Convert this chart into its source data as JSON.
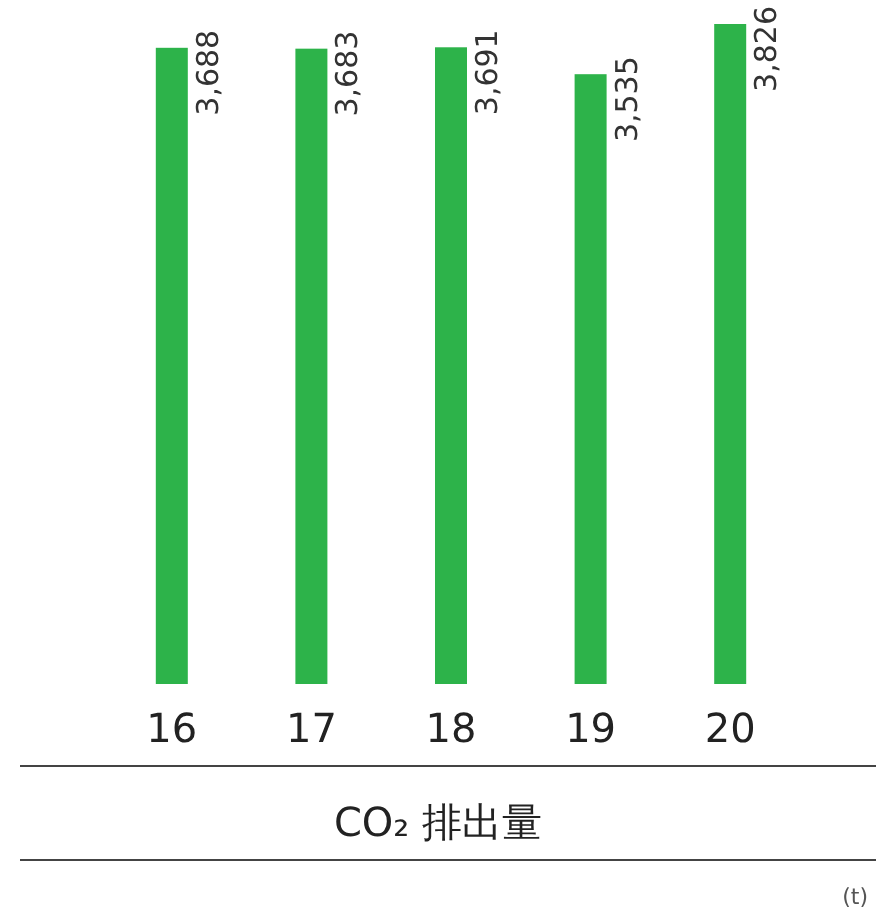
{
  "chart_data": {
    "type": "bar",
    "title": "CO₂ 排出量",
    "categories": [
      "16",
      "17",
      "18",
      "19",
      "20"
    ],
    "values": [
      3688,
      3683,
      3691,
      3535,
      3826
    ],
    "color": "#2db34a",
    "value_labels": [
      "3,688",
      "3,683",
      "3,691",
      "3,535",
      "3,826"
    ],
    "annotations": [
      "(t)"
    ]
  }
}
